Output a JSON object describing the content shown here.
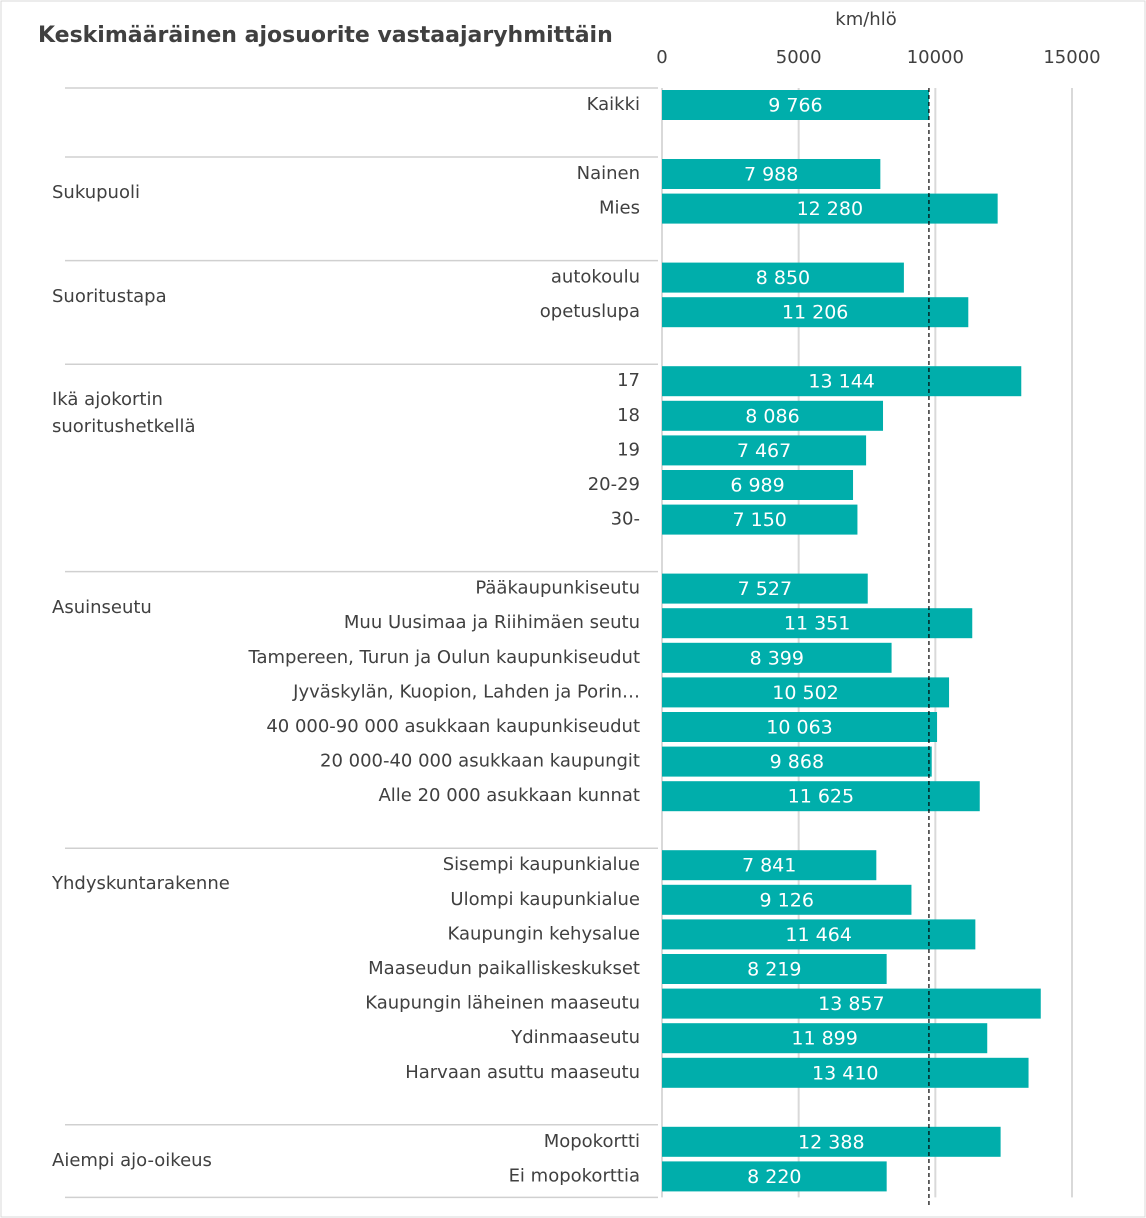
{
  "chart_data": {
    "type": "bar",
    "orientation": "horizontal",
    "title": "Keskimääräinen ajosuorite vastaajaryhmittäin",
    "x_label": "km/hlö",
    "xlim": [
      0,
      15000
    ],
    "xticks": [
      0,
      5000,
      10000,
      15000
    ],
    "grid": true,
    "color": "#00aeab",
    "groups": [
      {
        "categories": [
          "Kaikki"
        ],
        "values": [
          9766
        ],
        "value_labels": [
          "9 766"
        ]
      },
      {
        "name": "Sukupuoli",
        "categories": [
          "Nainen",
          "Mies"
        ],
        "values": [
          7988,
          12280
        ],
        "value_labels": [
          "7 988",
          "12 280"
        ]
      },
      {
        "name": "Suoritustapa",
        "categories": [
          "autokoulu",
          "opetuslupa"
        ],
        "values": [
          8850,
          11206
        ],
        "value_labels": [
          "8 850",
          "11 206"
        ]
      },
      {
        "name": "Ikä ajokortin suoritushetkellä",
        "categories": [
          "17",
          "18",
          "19",
          "20-29",
          "30-"
        ],
        "values": [
          13144,
          8086,
          7467,
          6989,
          7150
        ],
        "value_labels": [
          "13 144",
          "8 086",
          "7 467",
          "6 989",
          "7 150"
        ]
      },
      {
        "name": "Asuinseutu",
        "categories": [
          "Pääkaupunkiseutu",
          "Muu Uusimaa ja Riihimäen seutu",
          "Tampereen, Turun ja Oulun kaupunkiseudut",
          "Jyväskylän, Kuopion, Lahden ja Porin…",
          "40 000-90 000 asukkaan kaupunkiseudut",
          "20 000-40 000 asukkaan kaupungit",
          "Alle 20 000 asukkaan kunnat"
        ],
        "values": [
          7527,
          11351,
          8399,
          10502,
          10063,
          9868,
          11625
        ],
        "value_labels": [
          "7 527",
          "11 351",
          "8 399",
          "10 502",
          "10 063",
          "9 868",
          "11 625"
        ]
      },
      {
        "name": "Yhdyskuntarakenne",
        "categories": [
          "Sisempi kaupunkialue",
          "Ulompi kaupunkialue",
          "Kaupungin kehysalue",
          "Maaseudun paikalliskeskukset",
          "Kaupungin läheinen maaseutu",
          "Ydinmaaseutu",
          "Harvaan asuttu maaseutu"
        ],
        "values": [
          7841,
          9126,
          11464,
          8219,
          13857,
          11899,
          13410
        ],
        "value_labels": [
          "7 841",
          "9 126",
          "11 464",
          "8 219",
          "13 857",
          "11 899",
          "13 410"
        ]
      },
      {
        "name": "Aiempi ajo-oikeus",
        "categories": [
          "Mopokortti",
          "Ei mopokorttia"
        ],
        "values": [
          12388,
          8220
        ],
        "value_labels": [
          "12 388",
          "8 220"
        ]
      }
    ]
  }
}
